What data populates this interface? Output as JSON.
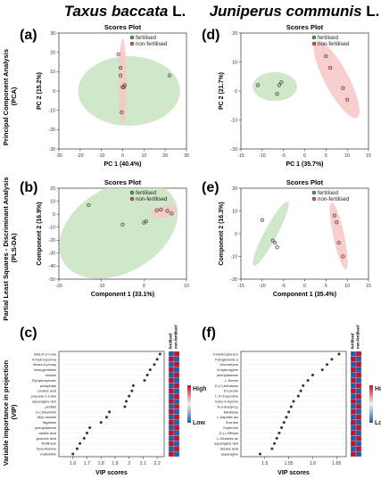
{
  "header": {
    "left_genus": "Taxus baccata",
    "left_suffix": " L.",
    "right_genus": "Juniperus communis",
    "right_suffix": " L."
  },
  "row_labels": {
    "pca": [
      "Principal Component Analysis",
      "(PCA)"
    ],
    "plsda": [
      "Partial Least Squares - Discriminant Analysis",
      "(PLS-DA)"
    ],
    "vip": [
      "Variable importance in projection",
      "(VIP)"
    ]
  },
  "colors": {
    "fertilised_fill": "#c8e3c0",
    "fertilised_point": "#4f9a4f",
    "nonfertilised_fill": "#f7c6c6",
    "nonfertilised_point": "#d9534f",
    "heat_high": "#c0162c",
    "heat_low": "#1f5fb0"
  },
  "chart_data": [
    {
      "panel": "(a)",
      "type": "scatter",
      "title": "Scores Plot",
      "xlabel": "PC 1 (40.4%)",
      "ylabel": "PC 2 (15.2%)",
      "xlim": [
        -30,
        30
      ],
      "ylim": [
        -30,
        30
      ],
      "xticks": [
        -30,
        -20,
        -10,
        0,
        10,
        20,
        30
      ],
      "yticks": [
        -30,
        -20,
        -10,
        0,
        10,
        20,
        30
      ],
      "legend": [
        "fertilised",
        "non-fertilised"
      ],
      "series": [
        {
          "name": "fertilised",
          "x": [
            -1,
            22,
            0,
            -0.5
          ],
          "y": [
            8,
            8,
            2,
            -11
          ]
        },
        {
          "name": "non-fertilised",
          "x": [
            -2,
            -1,
            1,
            0.5
          ],
          "y": [
            19,
            12,
            3,
            2
          ]
        }
      ]
    },
    {
      "panel": "(b)",
      "type": "scatter",
      "title": "Scores Plot",
      "xlabel": "Component 1 (33.1%)",
      "ylabel": "Component 2 (16.9%)",
      "xlim": [
        -20,
        10
      ],
      "ylim": [
        -50,
        20
      ],
      "xticks": [
        -20,
        -10,
        0,
        10
      ],
      "yticks": [
        -50,
        -40,
        -30,
        -20,
        -10,
        0,
        10,
        20
      ],
      "legend": [
        "fertilised",
        "non-fertilised"
      ],
      "series": [
        {
          "name": "fertilised",
          "x": [
            -13,
            -5,
            0,
            0.5
          ],
          "y": [
            7,
            -8,
            -6.5,
            -5.5
          ]
        },
        {
          "name": "non-fertilised",
          "x": [
            3,
            4,
            5.5,
            6.5
          ],
          "y": [
            3,
            3.5,
            2.5,
            0.5
          ]
        }
      ]
    },
    {
      "panel": "(c)",
      "type": "scatter",
      "xlabel": "VIP scores",
      "xlim": [
        1.5,
        2.25
      ],
      "xticks": [
        1.6,
        1.7,
        1.8,
        1.9,
        2.0,
        2.1,
        2.2
      ],
      "heatmap_columns": [
        "fertilised",
        "non-fertilised"
      ],
      "heatmap_legend": [
        "High",
        "Low"
      ],
      "categories": [
        "beta-D-(+)-Glu",
        "4-Hydroxycinna",
        "ribose-5-phosp",
        "beta-gentiobio",
        "Inositol",
        "Pyrophosphoric",
        "phosphate",
        "Linoleic acid",
        "propane-1,3-diol",
        "asparagine deh",
        "pentitol",
        "D-(-)Mannitol",
        "Myo-Inositol",
        "Tagatose",
        "phenylalanine",
        "vanillic acid",
        "gluconic acid",
        "Raffinose",
        "beta-Alanine",
        "maltotriitol"
      ],
      "values": [
        2.22,
        2.2,
        2.18,
        2.15,
        2.13,
        2.11,
        2.03,
        2.02,
        2.0,
        1.98,
        1.97,
        1.86,
        1.84,
        1.8,
        1.72,
        1.7,
        1.68,
        1.65,
        1.63,
        1.6
      ],
      "heat_fertilised": [
        "low",
        "high",
        "low",
        "high",
        "low",
        "high",
        "low",
        "high",
        "low",
        "high",
        "low",
        "high",
        "low",
        "high",
        "low",
        "high",
        "low",
        "high",
        "low",
        "high"
      ]
    },
    {
      "panel": "(d)",
      "type": "scatter",
      "title": "Scores Plot",
      "xlabel": "PC 1 (35.7%)",
      "ylabel": "PC 2 (21.7%)",
      "xlim": [
        -15,
        15
      ],
      "ylim": [
        -20,
        20
      ],
      "xticks": [
        -15,
        -10,
        -5,
        0,
        5,
        10,
        15
      ],
      "yticks": [
        -20,
        -10,
        0,
        10,
        20
      ],
      "legend": [
        "fertilised",
        "non-fertilised"
      ],
      "series": [
        {
          "name": "fertilised",
          "x": [
            -11,
            -6,
            -5.5,
            -6.5
          ],
          "y": [
            2,
            2,
            3,
            -1
          ]
        },
        {
          "name": "non-fertilised",
          "x": [
            5,
            6,
            9,
            10
          ],
          "y": [
            12,
            8,
            1,
            -3
          ]
        }
      ]
    },
    {
      "panel": "(e)",
      "type": "scatter",
      "title": "Scores Plot",
      "xlabel": "Component 1 (35.4%)",
      "ylabel": "Component 2 (16.3%)",
      "xlim": [
        -15,
        15
      ],
      "ylim": [
        -20,
        20
      ],
      "xticks": [
        -15,
        -10,
        -5,
        0,
        5,
        10,
        15
      ],
      "yticks": [
        -20,
        -10,
        0,
        10,
        20
      ],
      "legend": [
        "fertilised",
        "non-fertilised"
      ],
      "series": [
        {
          "name": "fertilised",
          "x": [
            -10,
            -7.5,
            -7,
            -6.5
          ],
          "y": [
            6,
            -3,
            -4,
            -6
          ]
        },
        {
          "name": "non-fertilised",
          "x": [
            7,
            7.5,
            8,
            9
          ],
          "y": [
            8,
            5,
            -4,
            -10
          ]
        }
      ]
    },
    {
      "panel": "(f)",
      "type": "scatter",
      "xlabel": "VIP scores",
      "xlim": [
        1.45,
        1.67
      ],
      "xticks": [
        1.5,
        1.55,
        1.6,
        1.65
      ],
      "heatmap_columns": [
        "fertilised",
        "non-fertilised"
      ],
      "heatmap_legend": [
        "High",
        "Low"
      ],
      "categories": [
        "4-Hydroxybenzo",
        "Pyroglutamic a",
        "Glucoseone",
        "4-Hydroxyphe",
        "phenylalanine",
        "L-Serine",
        "D-(+)-trehalose",
        "D-Lyxose",
        "L-5-Oxoproline",
        "trans-4-Hydrox",
        "N-a-Acetyl-Ly",
        "Melibiose",
        "L-Aspartic aci",
        "Sucrose",
        "Erythrose",
        "D-(-)-Ribose",
        "L-Glutamic ac",
        "asparagine deh",
        "Stearic acid",
        "asparagine"
      ],
      "values": [
        1.655,
        1.64,
        1.63,
        1.62,
        1.6,
        1.59,
        1.58,
        1.575,
        1.57,
        1.56,
        1.555,
        1.55,
        1.545,
        1.54,
        1.535,
        1.53,
        1.525,
        1.52,
        1.515,
        1.49
      ],
      "heat_fertilised": [
        "low",
        "high",
        "low",
        "high",
        "low",
        "high",
        "low",
        "high",
        "low",
        "high",
        "low",
        "high",
        "low",
        "high",
        "low",
        "high",
        "low",
        "high",
        "low",
        "high"
      ]
    }
  ]
}
